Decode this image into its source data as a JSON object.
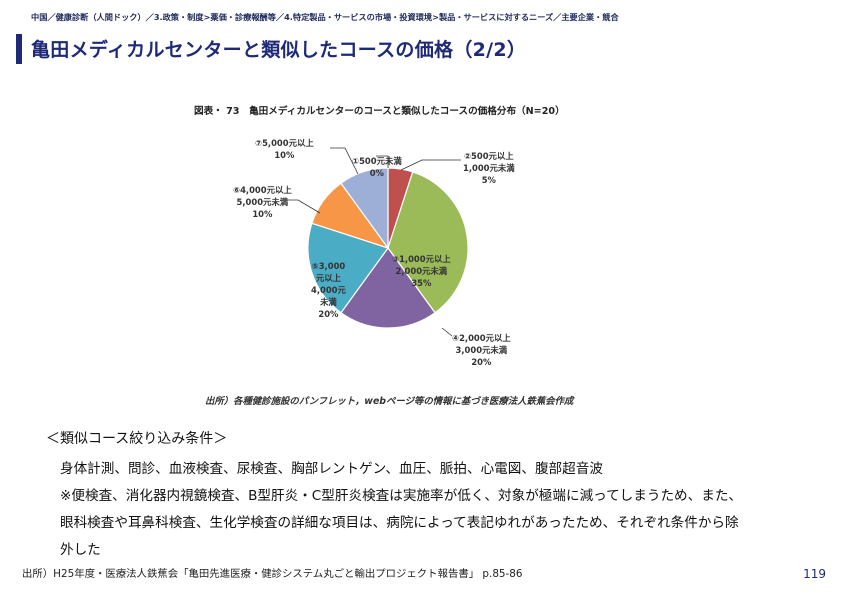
{
  "breadcrumb": "中国／健康診断（人間ドック）／3.政策・制度>薬価・診療報酬等／4.特定製品・サービスの市場・投資環境>製品・サービスに対するニーズ／主要企業・競合",
  "title": "亀田メディカルセンターと類似したコースの価格（2/2）",
  "figure": {
    "title": "図表・ 73　亀田メディカルセンターのコースと類似したコースの価格分布（N=20）",
    "source": "出所）各種健診施設のパンフレット，webページ等の情報に基づき医療法人鉄蕉会作成"
  },
  "chart_data": {
    "type": "pie",
    "title": "図表・ 73　亀田メディカルセンターのコースと類似したコースの価格分布（N=20）",
    "slices": [
      {
        "label_lines": [
          "①500元未満",
          "0%"
        ],
        "value": 0,
        "color": "#c0504d"
      },
      {
        "label_lines": [
          "②500元以上",
          "1,000元未満",
          "5%"
        ],
        "value": 5,
        "color": "#c0504d"
      },
      {
        "label_lines": [
          "③1,000元以上",
          "2,000元未満",
          "35%"
        ],
        "value": 35,
        "color": "#9bbb59"
      },
      {
        "label_lines": [
          "④2,000元以上",
          "3,000元未満",
          "20%"
        ],
        "value": 20,
        "color": "#8064a2"
      },
      {
        "label_lines": [
          "⑤3,000",
          "元以上",
          "4,000元",
          "未満",
          "20%"
        ],
        "value": 20,
        "color": "#4bacc6"
      },
      {
        "label_lines": [
          "⑥4,000元以上",
          "5,000元未満",
          "10%"
        ],
        "value": 10,
        "color": "#f79646"
      },
      {
        "label_lines": [
          "⑦5,000元以上",
          "10%"
        ],
        "value": 10,
        "color": "#9dafd6"
      }
    ]
  },
  "conditions": {
    "heading": "＜類似コース絞り込み条件＞",
    "lines": [
      "身体計測、問診、血液検査、尿検査、胸部レントゲン、血圧、脈拍、心電図、腹部超音波",
      "※便検査、消化器内視鏡検査、B型肝炎・C型肝炎検査は実施率が低く、対象が極端に減ってしまうため、また、",
      "眼科検査や耳鼻科検査、生化学検査の詳細な項目は、病院によって表記ゆれがあったため、それぞれ条件から除",
      "外した"
    ]
  },
  "footer": {
    "source": "出所）H25年度・医療法人鉄蕉会「亀田先進医療・健診システム丸ごと輸出プロジェクト報告書」 p.85-86",
    "page_number": "119"
  }
}
